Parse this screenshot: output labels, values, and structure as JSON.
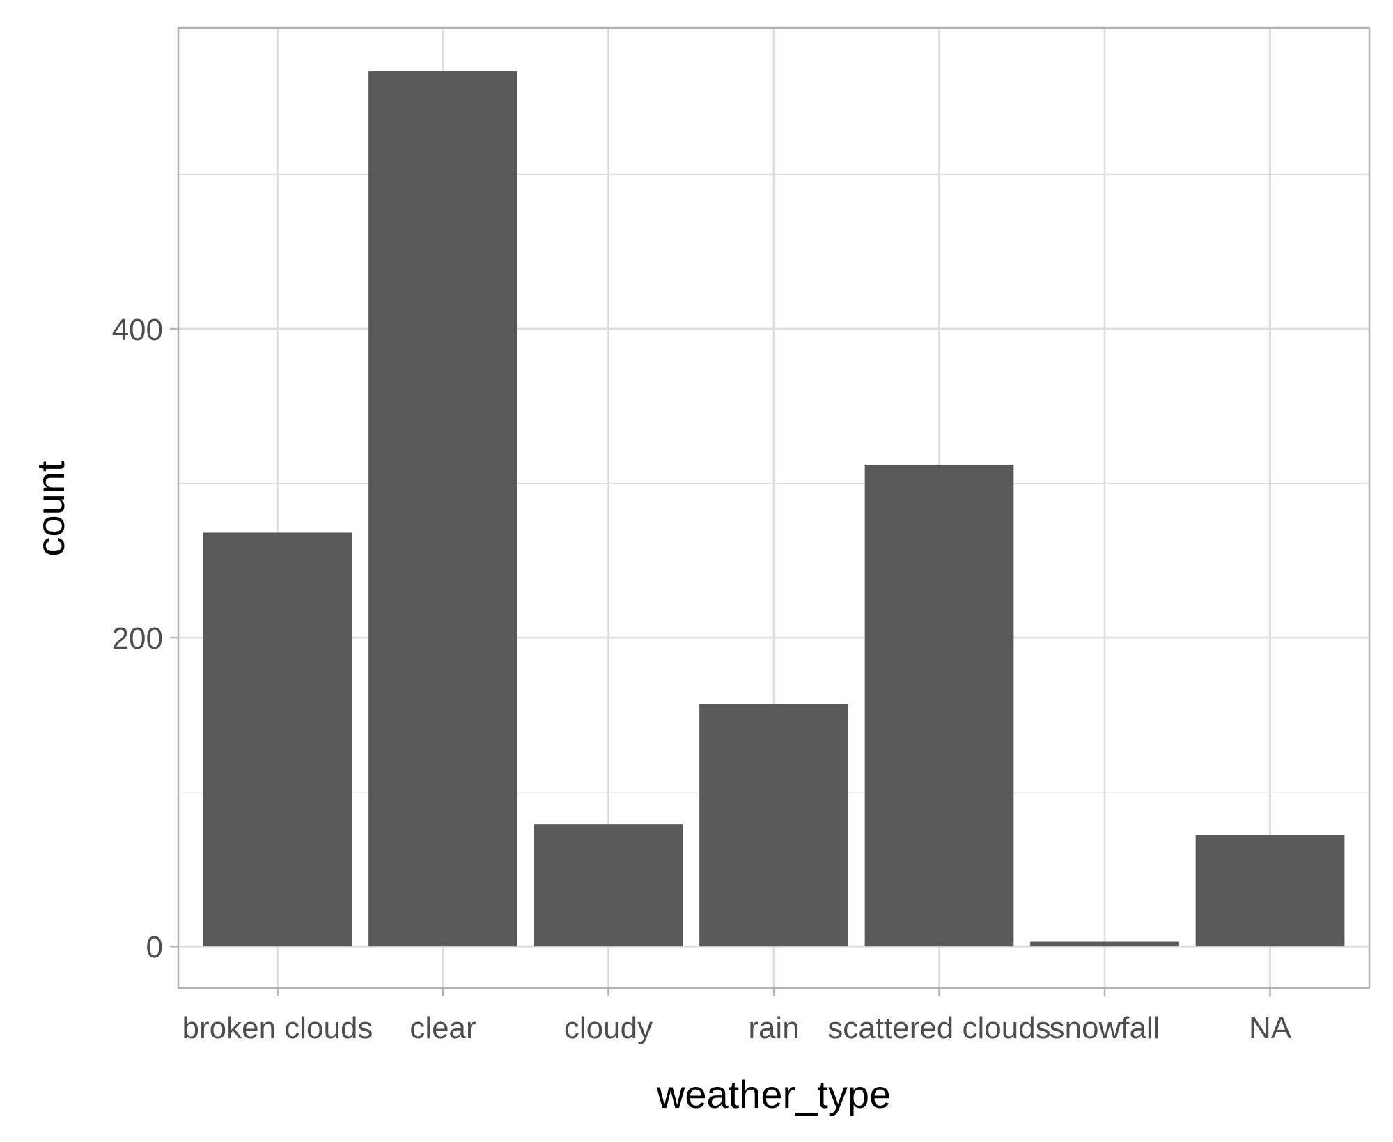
{
  "chart_data": {
    "type": "bar",
    "categories": [
      "broken clouds",
      "clear",
      "cloudy",
      "rain",
      "scattered clouds",
      "snowfall",
      "NA"
    ],
    "values": [
      268,
      567,
      79,
      157,
      312,
      3,
      72
    ],
    "xlabel": "weather_type",
    "ylabel": "count",
    "ylim": [
      -27,
      595
    ],
    "yticks": [
      0,
      200,
      400
    ],
    "grid": true,
    "colors": {
      "bar": "#595959",
      "grid": "#dedede",
      "border": "#b3b3b3",
      "background": "#ffffff"
    }
  }
}
